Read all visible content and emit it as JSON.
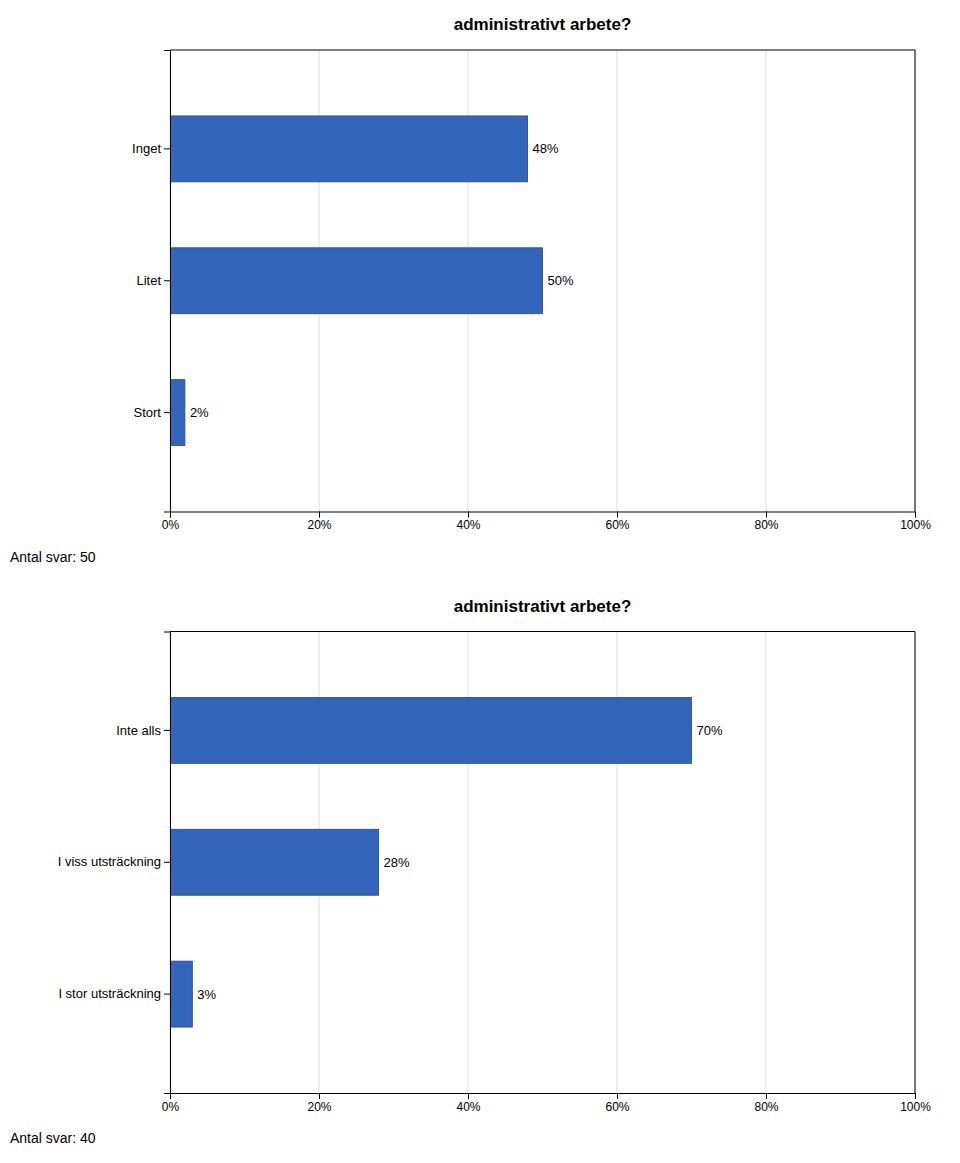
{
  "chart_data": [
    {
      "type": "bar",
      "orientation": "horizontal",
      "title": "administrativt arbete?",
      "categories": [
        "Inget",
        "Litet",
        "Stort"
      ],
      "values": [
        48,
        50,
        2
      ],
      "value_labels": [
        "48%",
        "50%",
        "2%"
      ],
      "data_labels": true,
      "color": "#3366bb",
      "xlim": [
        0,
        100
      ],
      "xticks": [
        {
          "value": 0,
          "label": "0%"
        },
        {
          "value": 20,
          "label": "20%"
        },
        {
          "value": 40,
          "label": "40%"
        },
        {
          "value": 60,
          "label": "60%"
        },
        {
          "value": 80,
          "label": "80%"
        },
        {
          "value": 100,
          "label": "100%"
        }
      ],
      "grid": true,
      "annotations": [
        "Antal svar: 50"
      ]
    },
    {
      "type": "bar",
      "orientation": "horizontal",
      "title": "administrativt arbete?",
      "categories": [
        "Inte alls",
        "I viss utsträckning",
        "I stor utsträckning"
      ],
      "values": [
        70,
        28,
        3
      ],
      "value_labels": [
        "70%",
        "28%",
        "3%"
      ],
      "data_labels": true,
      "color": "#3366bb",
      "xlim": [
        0,
        100
      ],
      "xticks": [
        {
          "value": 0,
          "label": "0%"
        },
        {
          "value": 20,
          "label": "20%"
        },
        {
          "value": 40,
          "label": "40%"
        },
        {
          "value": 60,
          "label": "60%"
        },
        {
          "value": 80,
          "label": "80%"
        },
        {
          "value": 100,
          "label": "100%"
        }
      ],
      "grid": true,
      "annotations": [
        "Antal svar: 40"
      ]
    }
  ]
}
